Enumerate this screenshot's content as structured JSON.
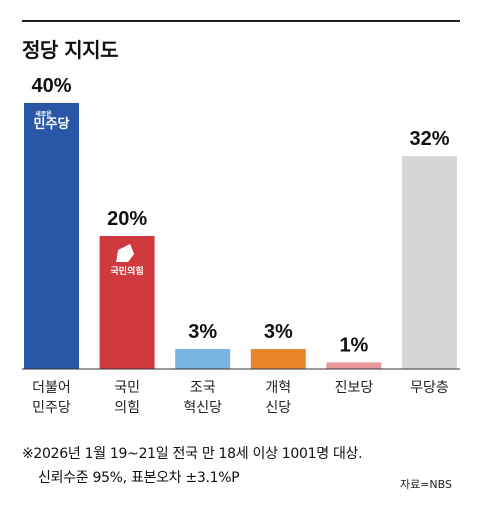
{
  "title": "정당 지지도",
  "chart_data": {
    "type": "bar",
    "categories": [
      [
        "더불어",
        "민주당"
      ],
      [
        "국민",
        "의힘"
      ],
      [
        "조국",
        "혁신당"
      ],
      [
        "개혁",
        "신당"
      ],
      [
        "진보당"
      ],
      [
        "무당층"
      ]
    ],
    "values": [
      40,
      20,
      3,
      3,
      1,
      32
    ],
    "value_labels": [
      "40%",
      "20%",
      "3%",
      "3%",
      "1%",
      "32%"
    ],
    "colors": [
      "#2a56a8",
      "#d03a3f",
      "#79b3e0",
      "#e8852a",
      "#e8999a",
      "#d6d6d6"
    ],
    "ylim": [
      0,
      40
    ],
    "grid": false,
    "legend": "none",
    "party_logos": {
      "0": {
        "small": "새로운",
        "main": "민주당"
      },
      "1": {
        "main": "국민의힘"
      }
    }
  },
  "notes": {
    "line1": "※2026년 1월 19~21일 전국 만 18세 이상 1001명 대상.",
    "line2": "신뢰수준 95%, 표본오차 ±3.1%P"
  },
  "source": "자료=NBS"
}
